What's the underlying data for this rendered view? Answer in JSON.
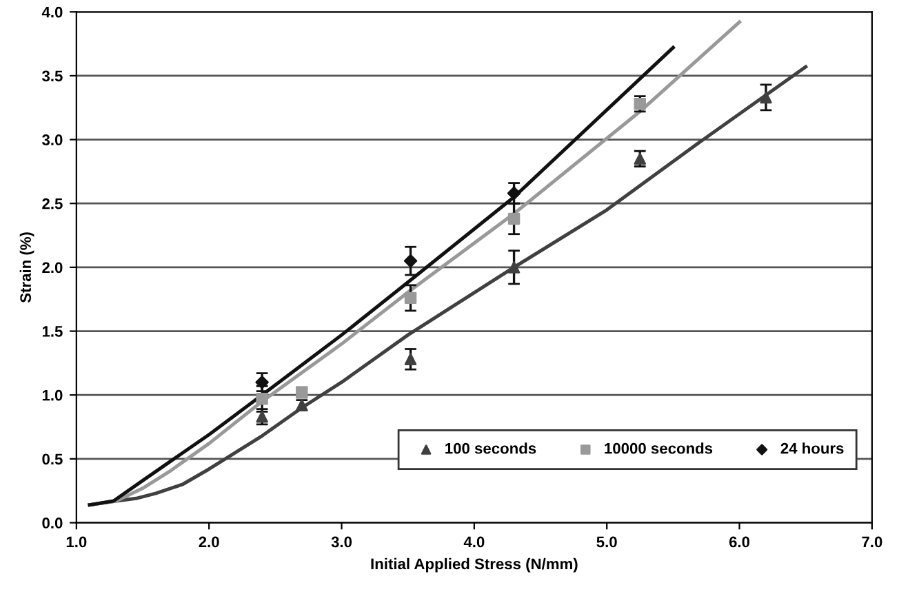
{
  "chart_data": {
    "type": "scatter",
    "xlabel": "Initial Applied Stress (N/mm)",
    "ylabel": "Strain (%)",
    "xlim": [
      1.0,
      7.0
    ],
    "ylim": [
      0.0,
      4.0
    ],
    "xticks": [
      {
        "value": 1.0,
        "label": "1.0"
      },
      {
        "value": 2.0,
        "label": "2.0"
      },
      {
        "value": 3.0,
        "label": "3.0"
      },
      {
        "value": 4.0,
        "label": "4.0"
      },
      {
        "value": 5.0,
        "label": "5.0"
      },
      {
        "value": 6.0,
        "label": "6.0"
      },
      {
        "value": 7.0,
        "label": "7.0"
      }
    ],
    "yticks": [
      {
        "value": 0.0,
        "label": "0.0"
      },
      0.5,
      {
        "value": 1.0,
        "label": "1.0"
      },
      1.5,
      {
        "value": 2.0,
        "label": "2.0"
      },
      2.5,
      {
        "value": 3.0,
        "label": "3.0"
      },
      3.5,
      {
        "value": 4.0,
        "label": "4.0"
      }
    ],
    "grid": "y",
    "legend": "bottom right",
    "series": [
      {
        "name": "100 seconds",
        "color": "#404040",
        "marker": "triangle",
        "x": [
          2.4,
          2.7,
          3.52,
          4.3,
          5.25,
          6.2
        ],
        "values": [
          0.83,
          0.92,
          1.28,
          2.0,
          2.85,
          3.33
        ],
        "errors": [
          0.06,
          0.04,
          0.08,
          0.13,
          0.06,
          0.1
        ]
      },
      {
        "name": "10000 seconds",
        "color": "#999999",
        "marker": "square",
        "x": [
          2.4,
          2.7,
          3.52,
          4.3,
          5.25
        ],
        "values": [
          0.97,
          1.02,
          1.76,
          2.38,
          3.28
        ],
        "errors": [
          0.1,
          0.04,
          0.1,
          0.12,
          0.06
        ]
      },
      {
        "name": "24 hours",
        "color": "#111111",
        "marker": "diamond",
        "x": [
          2.4,
          3.52,
          4.3
        ],
        "values": [
          1.1,
          2.05,
          2.58
        ],
        "errors": [
          0.07,
          0.11,
          0.08
        ]
      },
      {
        "type": "line",
        "color": "#404040",
        "x": [
          1.1,
          1.3,
          1.45,
          1.6,
          1.8,
          2.0,
          2.2,
          2.4,
          2.7,
          3.0,
          3.5,
          4.3,
          5.0,
          5.7,
          6.5
        ],
        "values": [
          0.14,
          0.17,
          0.19,
          0.23,
          0.3,
          0.42,
          0.55,
          0.68,
          0.9,
          1.1,
          1.47,
          2.0,
          2.45,
          2.98,
          3.57
        ]
      },
      {
        "type": "line",
        "color": "#999999",
        "x": [
          1.1,
          1.3,
          1.5,
          1.7,
          2.0,
          2.4,
          3.0,
          3.52,
          4.3,
          5.25,
          6.0
        ],
        "values": [
          0.14,
          0.17,
          0.27,
          0.4,
          0.62,
          0.95,
          1.4,
          1.82,
          2.42,
          3.22,
          3.92
        ]
      },
      {
        "type": "line",
        "color": "#111111",
        "x": [
          1.1,
          1.28,
          1.5,
          2.0,
          2.4,
          3.0,
          3.52,
          4.3,
          5.5
        ],
        "values": [
          0.14,
          0.17,
          0.33,
          0.69,
          1.0,
          1.47,
          1.9,
          2.55,
          3.72
        ]
      }
    ]
  }
}
